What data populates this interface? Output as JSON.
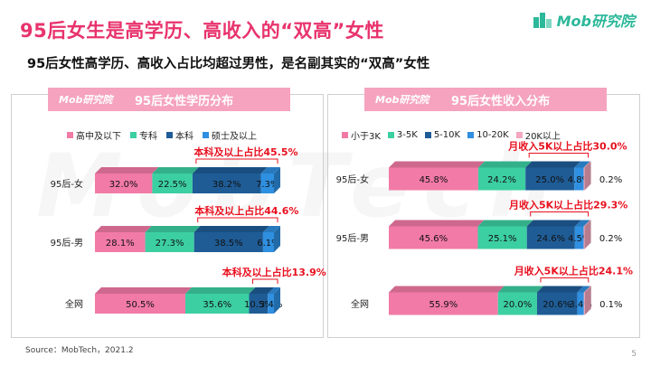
{
  "page": {
    "title": "95后女生是高学历、高收入的“双高”女性",
    "subtitle": "95后女性高学历、高收入占比均超过男性，是名副其实的“双高”女性",
    "logo_text": "Mob研究院",
    "watermark": "MobTech",
    "source": "Source：MobTech，2021.2",
    "page_number": "5"
  },
  "colors": {
    "title": "#e8336d",
    "pink": "#f27aa6",
    "teal": "#3ccfa1",
    "navy": "#1f5c96",
    "blue": "#2f8fe0",
    "annotation": "#e8101e"
  },
  "chart_data": [
    {
      "type": "bar",
      "stacked": true,
      "orientation": "horizontal",
      "title": "95后女性学历分布",
      "categories": [
        "95后-女",
        "95后-男",
        "全网"
      ],
      "series": [
        {
          "name": "高中及以下",
          "color": "#f27aa6",
          "values": [
            32.0,
            28.1,
            50.5
          ],
          "labels": [
            "32.0%",
            "28.1%",
            "50.5%"
          ]
        },
        {
          "name": "专科",
          "color": "#3ccfa1",
          "values": [
            22.5,
            27.3,
            35.6
          ],
          "labels": [
            "22.5%",
            "27.3%",
            "35.6%"
          ]
        },
        {
          "name": "本科",
          "color": "#1f5c96",
          "values": [
            38.2,
            38.5,
            10.5
          ],
          "labels": [
            "38.2%",
            "38.5%",
            "10.5%"
          ]
        },
        {
          "name": "硕士及以上",
          "color": "#2f8fe0",
          "values": [
            7.3,
            6.1,
            3.4
          ],
          "labels": [
            "7.3%",
            "6.1%",
            "3.4%"
          ]
        }
      ],
      "annotations": [
        "本科及以上占比45.5%",
        "本科及以上占比44.6%",
        "本科及以上占比13.9%"
      ]
    },
    {
      "type": "bar",
      "stacked": true,
      "orientation": "horizontal",
      "title": "95后女性收入分布",
      "categories": [
        "95后-女",
        "95后-男",
        "全网"
      ],
      "series": [
        {
          "name": "小于3K",
          "color": "#f27aa6",
          "values": [
            45.8,
            45.6,
            55.9
          ],
          "labels": [
            "45.8%",
            "45.6%",
            "55.9%"
          ]
        },
        {
          "name": "3-5K",
          "color": "#3ccfa1",
          "values": [
            24.2,
            25.1,
            20.0
          ],
          "labels": [
            "24.2%",
            "25.1%",
            "20.0%"
          ]
        },
        {
          "name": "5-10K",
          "color": "#1f5c96",
          "values": [
            25.0,
            24.6,
            20.6
          ],
          "labels": [
            "25.0%",
            "24.6%",
            "20.6%"
          ]
        },
        {
          "name": "10-20K",
          "color": "#2f8fe0",
          "values": [
            4.8,
            4.5,
            3.4
          ],
          "labels": [
            "4.8%",
            "4.5%",
            "3.4%"
          ]
        },
        {
          "name": "20K以上",
          "color": "#f4a7bf",
          "values": [
            0.2,
            0.2,
            0.1
          ],
          "labels": [
            "0.2%",
            "0.2%",
            "0.1%"
          ]
        }
      ],
      "annotations": [
        "月收入5K以上占比30.0%",
        "月收入5K以上占比29.3%",
        "月收入5K以上占比24.1%"
      ]
    }
  ]
}
